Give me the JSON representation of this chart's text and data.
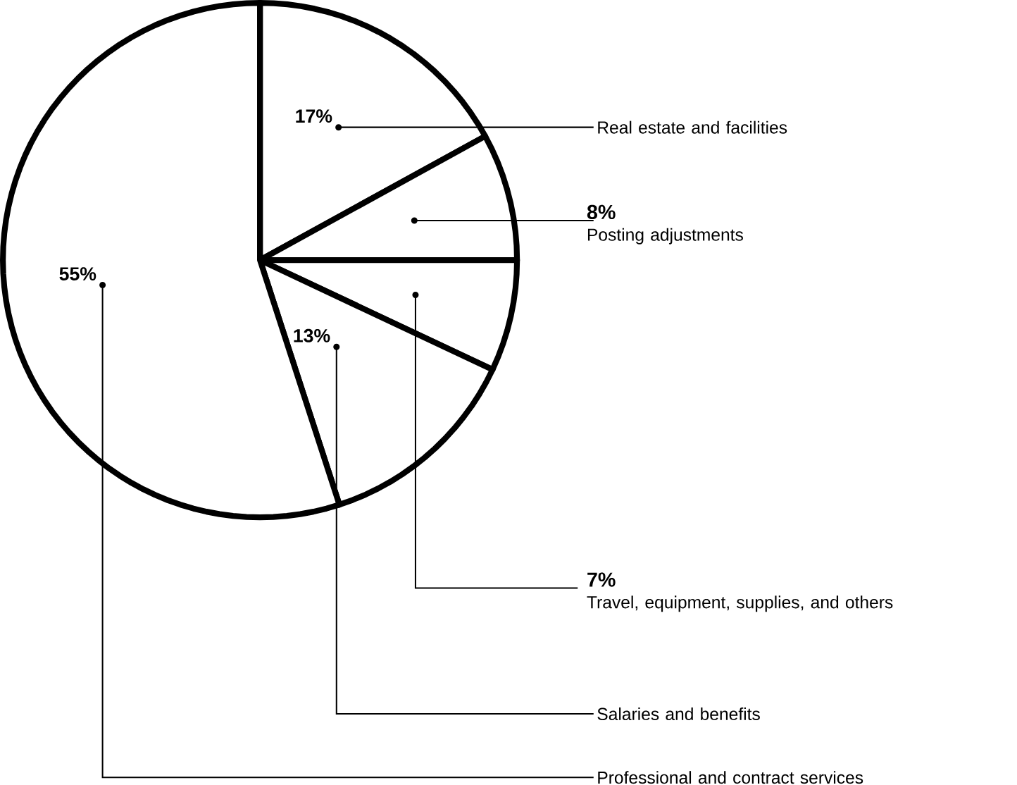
{
  "chart_data": {
    "type": "pie",
    "categories": [
      "Real estate and facilities",
      "Posting adjustments",
      "Travel, equipment, supplies, and others",
      "Salaries and benefits",
      "Professional and contract services"
    ],
    "values": [
      17,
      8,
      7,
      13,
      55
    ],
    "value_labels": [
      "17%",
      "8%",
      "7%",
      "13%",
      "55%"
    ],
    "colors": [
      "#ffffff",
      "#ffffff",
      "#ffffff",
      "#ffffff",
      "#ffffff"
    ]
  }
}
